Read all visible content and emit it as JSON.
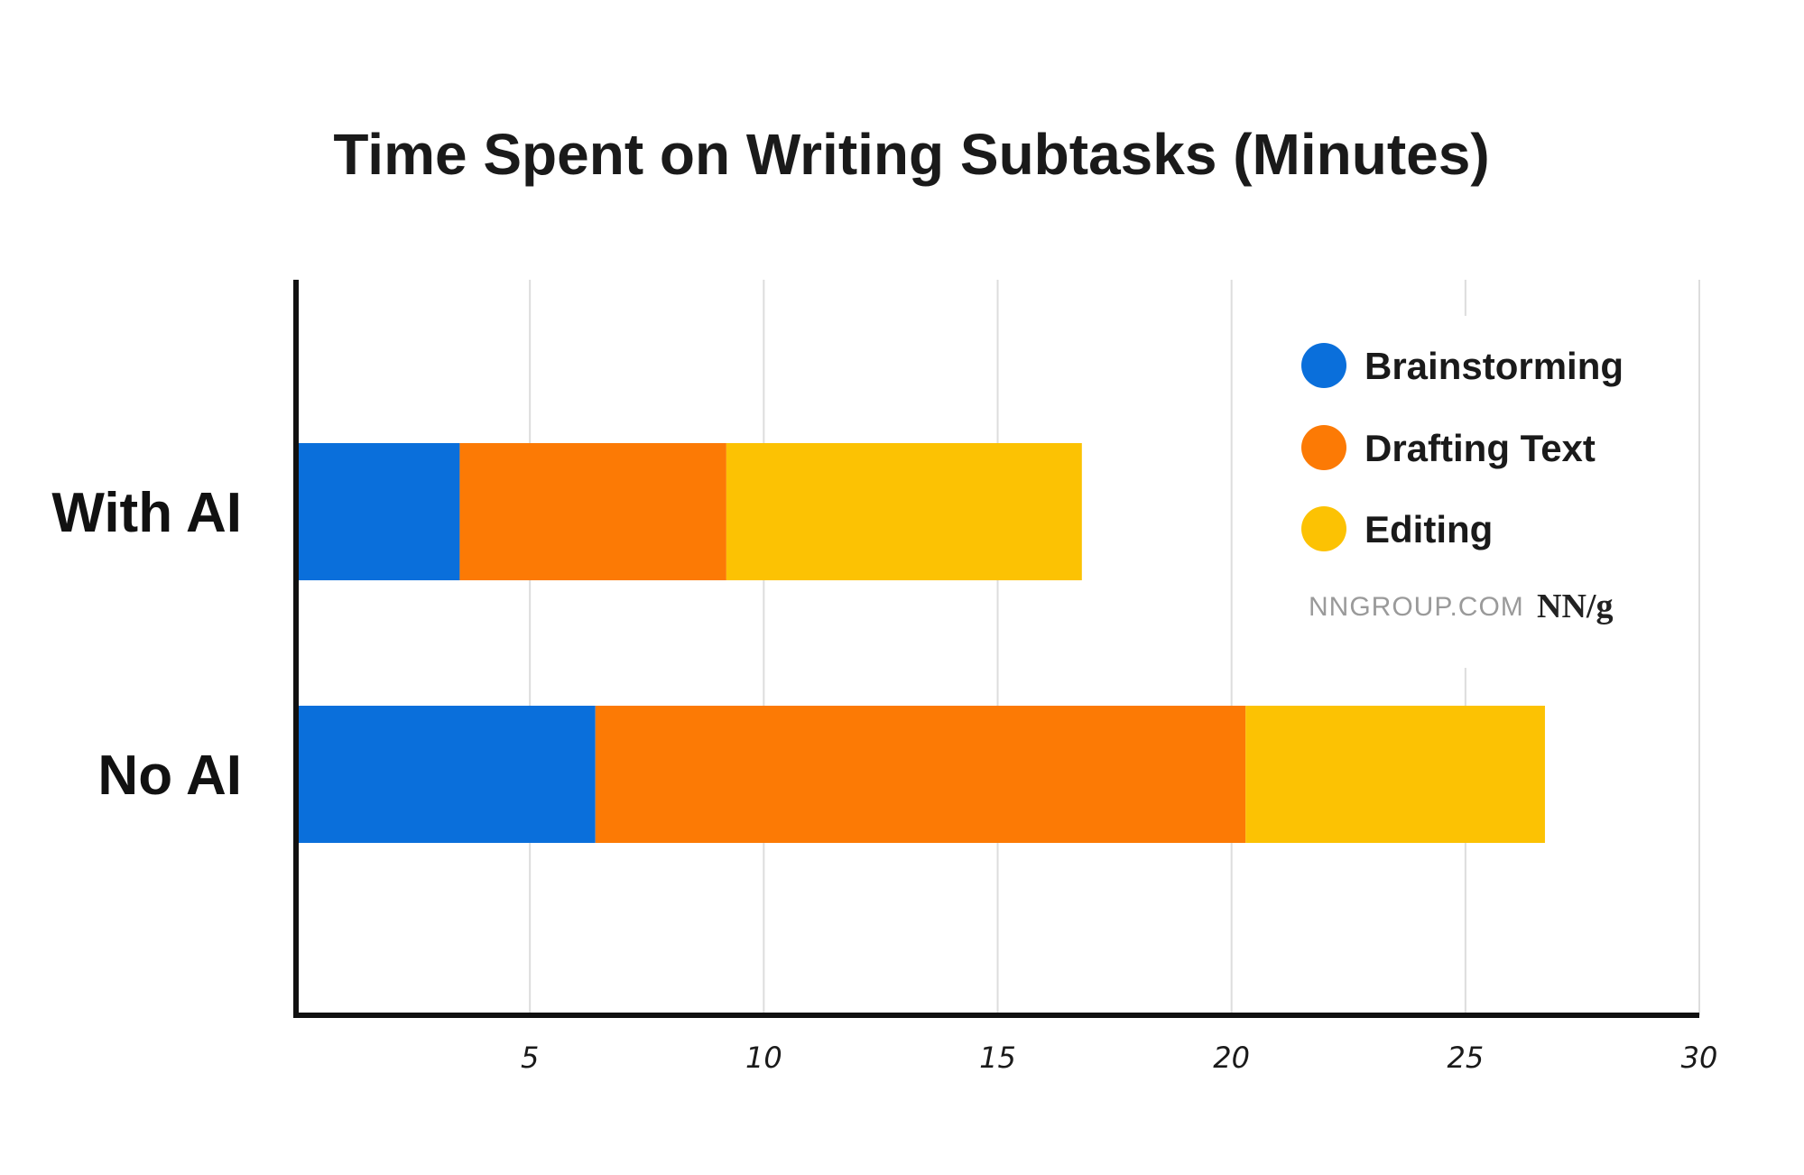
{
  "chart_data": {
    "type": "bar",
    "orientation": "horizontal",
    "stacked": true,
    "title": "Time Spent on Writing Subtasks (Minutes)",
    "xlabel": "",
    "ylabel": "",
    "categories": [
      "With AI",
      "No AI"
    ],
    "series": [
      {
        "name": "Brainstorming",
        "color": "#0A6FDB",
        "values": [
          3.5,
          6.4
        ]
      },
      {
        "name": "Drafting Text",
        "color": "#FC7A05",
        "values": [
          5.7,
          13.9
        ]
      },
      {
        "name": "Editing",
        "color": "#FCC203",
        "values": [
          7.6,
          6.4
        ]
      }
    ],
    "xlim": [
      0,
      30
    ],
    "xticks": [
      5,
      10,
      15,
      20,
      25,
      30
    ],
    "grid": "vertical",
    "legend_position": "top-right"
  },
  "branding": {
    "source": "NNGROUP.COM",
    "logo_main": "NN",
    "logo_suffix": "/g"
  }
}
